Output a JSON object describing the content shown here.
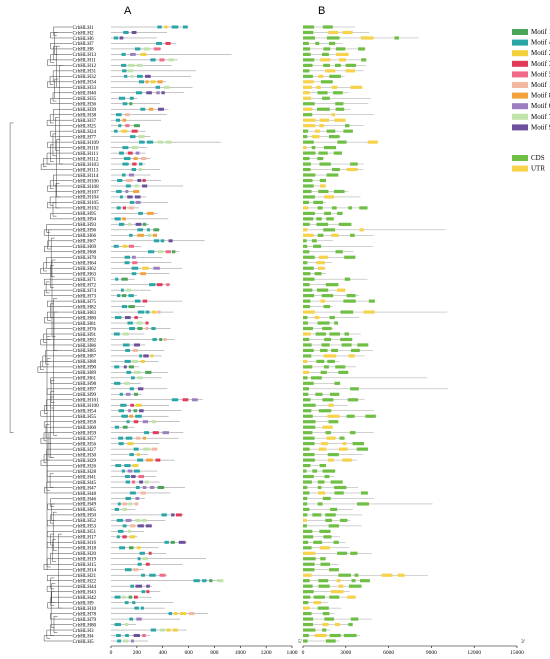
{
  "panels": {
    "a": "A",
    "b": "B"
  },
  "genes": [
    "CrbHLH1",
    "CrbHLH2",
    "CrbHLH6",
    "CrbHLH7",
    "CrbHLH8",
    "CrbHLH13",
    "CrbHLH11",
    "CrbHLH12",
    "CrbHLH31",
    "CrbHLH32",
    "CrbHLH34",
    "CrbHLH33",
    "CrbHLH40",
    "CrbHLH35",
    "CrbHLH36",
    "CrbHLH39",
    "CrbHLH38",
    "CrbHLH37",
    "CrbHLH25",
    "CrbHLH24",
    "CrbHLH77",
    "CrbHLH109",
    "CrbHLH110",
    "CrbHLH111",
    "CrbHLH112",
    "CrbHLH103",
    "CrbHLH113",
    "CrbHLH114",
    "CrbHLH106",
    "CrbHLH108",
    "CrbHLH107",
    "CrbHLH104",
    "CrbHLH105",
    "CrbHLH102",
    "CrbHLH95",
    "CrbHLH94",
    "CrbHLH93",
    "CrbHLH96",
    "CrbHLH66",
    "CrbHLH67",
    "CrbHLH69",
    "CrbHLH68",
    "CrbHLH70",
    "CrbHLH64",
    "CrbHLH62",
    "CrbHLH63",
    "CrbHLH71",
    "CrbHLH72",
    "CrbHLH74",
    "CrbHLH73",
    "CrbHLH75",
    "CrbHLH82",
    "CrbHLH83",
    "CrbHLH80",
    "CrbHLH81",
    "CrbHLH76",
    "CrbHLH91",
    "CrbHLH92",
    "CrbHLH86",
    "CrbHLH85",
    "CrbHLH87",
    "CrbHLH88",
    "CrbHLH90",
    "CrbHLH89",
    "CrbHLH61",
    "CrbHLH98",
    "CrbHLH97",
    "CrbHLH99",
    "CrbHLH101",
    "CrbHLH100",
    "CrbHLH54",
    "CrbHLH55",
    "CrbHLH58",
    "CrbHLH60",
    "CrbHLH59",
    "CrbHLH57",
    "CrbHLH56",
    "CrbHLH27",
    "CrbHLH30",
    "CrbHLH29",
    "CrbHLH26",
    "CrbHLH28",
    "CrbHLH41",
    "CrbHLH45",
    "CrbHLH47",
    "CrbHLH48",
    "CrbHLH46",
    "CrbHLH49",
    "CrbHLH65",
    "CrbHLH50",
    "CrbHLH52",
    "CrbHLH53",
    "CrbHLH51",
    "CrbHLH17",
    "CrbHLH16",
    "CrbHLH18",
    "CrbHLH20",
    "CrbHLH19",
    "CrbHLH15",
    "CrbHLH14",
    "CrbHLH21",
    "CrbHLH22",
    "CrbHLH44",
    "CrbHLH43",
    "CrbHLH42",
    "CrbHLH9",
    "CrbHLH10",
    "CrbHLH78",
    "CrbHLH79",
    "CrbHLH80",
    "CrbHLH3",
    "CrbHLH4",
    "CrbHLH5"
  ],
  "chart_data": [
    {
      "type": "motif-diagram",
      "panel": "A",
      "xlim": [
        0,
        1400
      ],
      "ticks": [
        "0",
        "200",
        "400",
        "600",
        "800",
        "1000",
        "1200",
        "1400"
      ],
      "motifs": [
        {
          "name": "Motif 1",
          "color": "#4aa557"
        },
        {
          "name": "Motif 4",
          "color": "#2aa6a6"
        },
        {
          "name": "Motif 2",
          "color": "#f2d13b"
        },
        {
          "name": "Motif 3",
          "color": "#e23b5a"
        },
        {
          "name": "Motif 5",
          "color": "#f06a8a"
        },
        {
          "name": "Motif 10",
          "color": "#f4b7a0"
        },
        {
          "name": "Motif 8",
          "color": "#f3a23c"
        },
        {
          "name": "Motif 6",
          "color": "#9b7fc0"
        },
        {
          "name": "Motif 7",
          "color": "#bfe3a8"
        },
        {
          "name": "Motif 9",
          "color": "#6c4f9d"
        }
      ]
    },
    {
      "type": "gene-structure",
      "panel": "B",
      "xlim": [
        0,
        15000
      ],
      "ticks": [
        "0",
        "3000",
        "6000",
        "9000",
        "12000",
        "15000"
      ],
      "end5": "5'",
      "end3": "3'",
      "features": [
        {
          "name": "CDS",
          "color": "#6fbf45"
        },
        {
          "name": "UTR",
          "color": "#f7d24b"
        }
      ]
    }
  ]
}
